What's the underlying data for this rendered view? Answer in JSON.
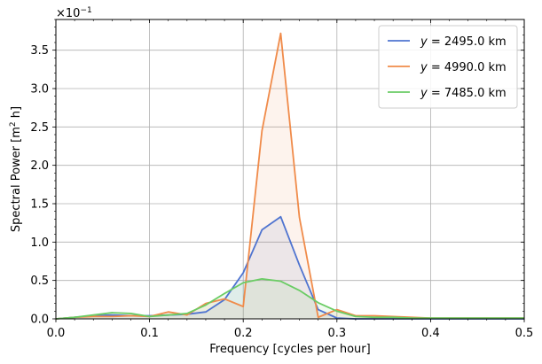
{
  "chart_data": {
    "type": "line",
    "xlabel": "Frequency [cycles per hour]",
    "ylabel_main": "Spectral Power [m",
    "ylabel_sup": "2",
    "ylabel_tail": " h]",
    "y_multiplier_base": "×10",
    "y_multiplier_exp": "−1",
    "xlim": [
      0.0,
      0.5
    ],
    "ylim": [
      0.0,
      0.39
    ],
    "x_ticks": [
      0.0,
      0.1,
      0.2,
      0.3,
      0.4,
      0.5
    ],
    "x_tick_labels": [
      "0.0",
      "0.1",
      "0.2",
      "0.3",
      "0.4",
      "0.5"
    ],
    "y_ticks": [
      0.0,
      0.05,
      0.1,
      0.15,
      0.2,
      0.25,
      0.3,
      0.35
    ],
    "y_tick_labels": [
      "0.0",
      "0.5",
      "1.0",
      "1.5",
      "2.0",
      "2.5",
      "3.0",
      "3.5"
    ],
    "grid": true,
    "legend_position": "top-right",
    "x": [
      0.0,
      0.02,
      0.04,
      0.06,
      0.08,
      0.1,
      0.12,
      0.14,
      0.16,
      0.18,
      0.2,
      0.22,
      0.24,
      0.26,
      0.28,
      0.3,
      0.32,
      0.34,
      0.36,
      0.38,
      0.4,
      0.42,
      0.44,
      0.46,
      0.48,
      0.5
    ],
    "series": [
      {
        "name": "y = 2495.0 km",
        "legend_prefix": "y",
        "legend_value": " = 2495.0 km",
        "color": "#4f74d0",
        "values": [
          0.0,
          0.002,
          0.004,
          0.005,
          0.004,
          0.004,
          0.005,
          0.006,
          0.009,
          0.025,
          0.06,
          0.116,
          0.133,
          0.07,
          0.012,
          0.001,
          0.0,
          0.0,
          0.0,
          0.0,
          0.0,
          0.0,
          0.0,
          0.0,
          0.0,
          0.0
        ]
      },
      {
        "name": "y = 4990.0 km",
        "legend_prefix": "y",
        "legend_value": " = 4990.0 km",
        "color": "#f08b4a",
        "values": [
          0.0,
          0.002,
          0.003,
          0.003,
          0.004,
          0.003,
          0.009,
          0.005,
          0.02,
          0.026,
          0.016,
          0.245,
          0.372,
          0.132,
          0.002,
          0.012,
          0.004,
          0.004,
          0.003,
          0.002,
          0.001,
          0.001,
          0.001,
          0.001,
          0.001,
          0.001
        ]
      },
      {
        "name": "y = 7485.0 km",
        "legend_prefix": "y",
        "legend_value": " = 7485.0 km",
        "color": "#6acc64",
        "values": [
          0.0,
          0.002,
          0.005,
          0.008,
          0.007,
          0.003,
          0.005,
          0.007,
          0.018,
          0.033,
          0.047,
          0.052,
          0.049,
          0.037,
          0.021,
          0.01,
          0.003,
          0.002,
          0.002,
          0.001,
          0.001,
          0.001,
          0.001,
          0.001,
          0.001,
          0.001
        ]
      }
    ]
  }
}
